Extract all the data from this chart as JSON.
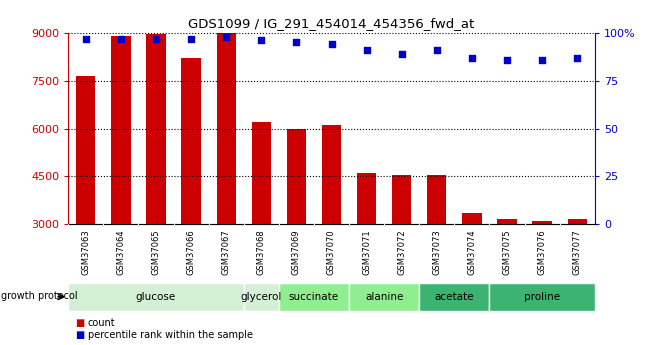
{
  "title": "GDS1099 / IG_291_454014_454356_fwd_at",
  "samples": [
    "GSM37063",
    "GSM37064",
    "GSM37065",
    "GSM37066",
    "GSM37067",
    "GSM37068",
    "GSM37069",
    "GSM37070",
    "GSM37071",
    "GSM37072",
    "GSM37073",
    "GSM37074",
    "GSM37075",
    "GSM37076",
    "GSM37077"
  ],
  "counts": [
    7650,
    8900,
    8950,
    8200,
    9000,
    6200,
    6000,
    6100,
    4600,
    4550,
    4550,
    3350,
    3150,
    3100,
    3150
  ],
  "percentiles": [
    97,
    97,
    97,
    97,
    98,
    96,
    95,
    94,
    91,
    89,
    91,
    87,
    86,
    86,
    87
  ],
  "ylim_left": [
    3000,
    9000
  ],
  "ylim_right": [
    0,
    100
  ],
  "yticks_left": [
    3000,
    4500,
    6000,
    7500,
    9000
  ],
  "yticks_right": [
    0,
    25,
    50,
    75,
    100
  ],
  "ytick_labels_right": [
    "0",
    "25",
    "50",
    "75",
    "100%"
  ],
  "groups": [
    {
      "label": "glucose",
      "color": "#d4f0d4",
      "indices": [
        0,
        1,
        2,
        3,
        4
      ]
    },
    {
      "label": "glycerol",
      "color": "#d4f0d4",
      "indices": [
        5
      ]
    },
    {
      "label": "succinate",
      "color": "#90ee90",
      "indices": [
        6,
        7
      ]
    },
    {
      "label": "alanine",
      "color": "#90ee90",
      "indices": [
        8,
        9
      ]
    },
    {
      "label": "acetate",
      "color": "#3cb371",
      "indices": [
        10,
        11
      ]
    },
    {
      "label": "proline",
      "color": "#3cb371",
      "indices": [
        12,
        13,
        14
      ]
    }
  ],
  "bar_color": "#cc0000",
  "dot_color": "#0000cc",
  "background_color": "#ffffff",
  "tick_area_color": "#c8c8c8",
  "legend_count_color": "#cc0000",
  "legend_pct_color": "#0000cc",
  "left_axis_color": "#cc0000",
  "right_axis_color": "#0000cc"
}
